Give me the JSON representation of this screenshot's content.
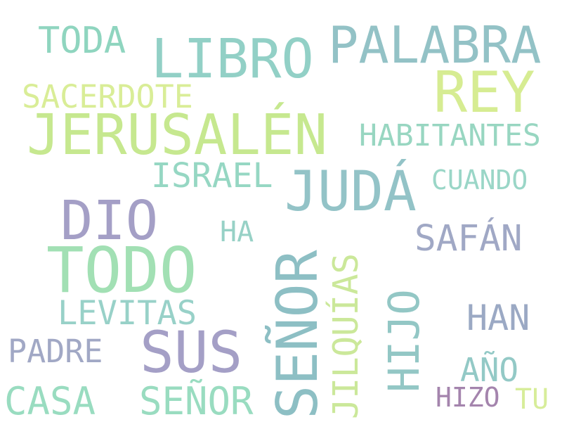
{
  "words": [
    {
      "text": "JERUSALÉN",
      "color": "#c6e88f"
    },
    {
      "text": "TODO",
      "color": "#a2e0b4"
    },
    {
      "text": "SEÑOR",
      "color": "#8dbfc4"
    },
    {
      "text": "LIBRO",
      "color": "#92d0c6"
    },
    {
      "text": "PALABRA",
      "color": "#93c2c6"
    },
    {
      "text": "REY",
      "color": "#d6ec92"
    },
    {
      "text": "JUDÁ",
      "color": "#93c3c7"
    },
    {
      "text": "DIO",
      "color": "#a49fc6"
    },
    {
      "text": "SUS",
      "color": "#a49fc6"
    },
    {
      "text": "HIJO",
      "color": "#93c7c5"
    },
    {
      "text": "JILQUÍAS",
      "color": "#cbe89a"
    },
    {
      "text": "SAFÁN",
      "color": "#a0a8c5"
    },
    {
      "text": "CASA",
      "color": "#99dcc0"
    },
    {
      "text": "SEÑOR",
      "color": "#99dcc0"
    },
    {
      "text": "TODA",
      "color": "#8fd5bf"
    },
    {
      "text": "SACERDOTE",
      "color": "#d9ed97"
    },
    {
      "text": "HABITANTES",
      "color": "#98d6c1"
    },
    {
      "text": "ISRAEL",
      "color": "#96d7c3"
    },
    {
      "text": "CUANDO",
      "color": "#9ad6c7"
    },
    {
      "text": "HA",
      "color": "#97d1c6"
    },
    {
      "text": "LEVITAS",
      "color": "#98d1c8"
    },
    {
      "text": "HAN",
      "color": "#9ba9c4"
    },
    {
      "text": "PADRE",
      "color": "#a1a8c5"
    },
    {
      "text": "AÑO",
      "color": "#93c9c6"
    },
    {
      "text": "HIZO",
      "color": "#a484ad"
    },
    {
      "text": "TU",
      "color": "#d7ed9a"
    }
  ]
}
